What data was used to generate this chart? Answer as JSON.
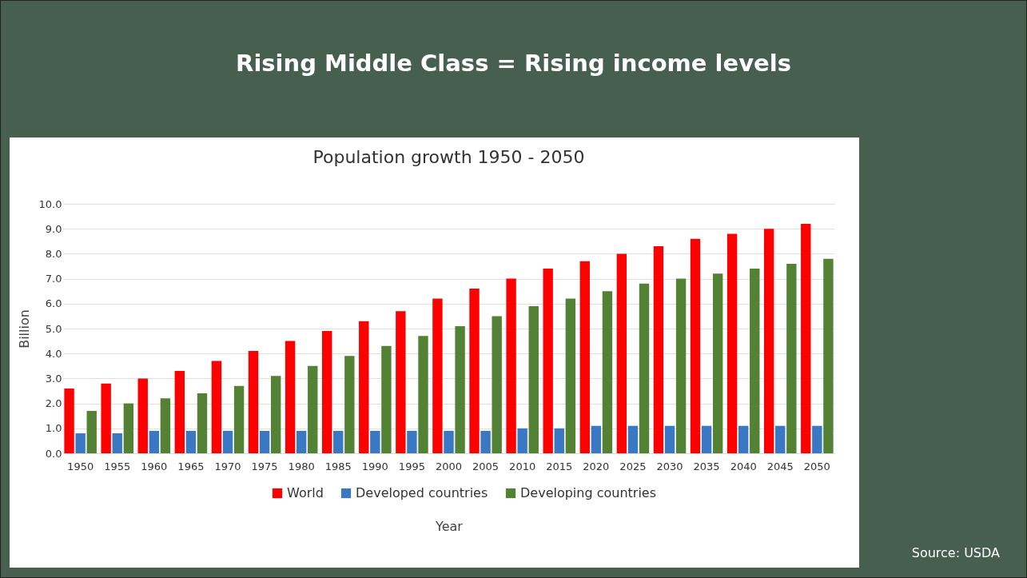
{
  "chart_data": {
    "type": "bar",
    "title": "Rising Middle Class = Rising income levels",
    "subtitle": "Population growth 1950 - 2050",
    "xlabel": "Year",
    "ylabel": "Billion",
    "categories": [
      "1950",
      "1955",
      "1960",
      "1965",
      "1970",
      "1975",
      "1980",
      "1985",
      "1990",
      "1995",
      "2000",
      "2005",
      "2010",
      "2015",
      "2020",
      "2025",
      "2030",
      "2035",
      "2040",
      "2045",
      "2050"
    ],
    "series": [
      {
        "name": "World",
        "color": "#ff0000",
        "values": [
          2.6,
          2.8,
          3.0,
          3.3,
          3.7,
          4.1,
          4.5,
          4.9,
          5.3,
          5.7,
          6.2,
          6.6,
          7.0,
          7.4,
          7.7,
          8.0,
          8.3,
          8.6,
          8.8,
          9.0,
          9.2
        ]
      },
      {
        "name": "Developed countries",
        "color": "#3a78c3",
        "values": [
          0.8,
          0.8,
          0.9,
          0.9,
          0.9,
          0.9,
          0.9,
          0.9,
          0.9,
          0.9,
          0.9,
          0.9,
          1.0,
          1.0,
          1.1,
          1.1,
          1.1,
          1.1,
          1.1,
          1.1,
          1.1
        ]
      },
      {
        "name": "Developing countries",
        "color": "#548235",
        "values": [
          1.7,
          2.0,
          2.2,
          2.4,
          2.7,
          3.1,
          3.5,
          3.9,
          4.3,
          4.7,
          5.1,
          5.5,
          5.9,
          6.2,
          6.5,
          6.8,
          7.0,
          7.2,
          7.4,
          7.6,
          7.8
        ]
      }
    ],
    "ylim": [
      0,
      10
    ],
    "yticks": [
      {
        "value": 0,
        "label": "0.0"
      },
      {
        "value": 1,
        "label": "1.0"
      },
      {
        "value": 2,
        "label": "2.0"
      },
      {
        "value": 3,
        "label": "3.0"
      },
      {
        "value": 4,
        "label": "4.0"
      },
      {
        "value": 5,
        "label": "5.0"
      },
      {
        "value": 6,
        "label": "6.0"
      },
      {
        "value": 7,
        "label": "7.0"
      },
      {
        "value": 8,
        "label": "8.0"
      },
      {
        "value": 9,
        "label": "9.0"
      },
      {
        "value": 10,
        "label": "10.0"
      }
    ],
    "grid": "y",
    "legend": "bottom",
    "annotations": [
      "Source: USDA"
    ]
  }
}
